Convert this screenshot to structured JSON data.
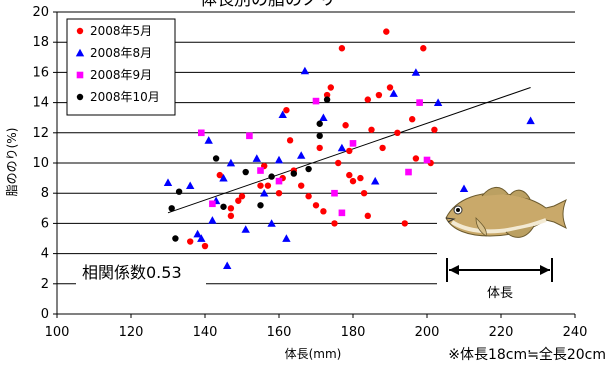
{
  "chart_data": {
    "type": "scatter",
    "title": "体長別の脂のノリ",
    "xlabel": "体長(mm)",
    "ylabel": "脂ののり(%)",
    "xlim": [
      100,
      240
    ],
    "ylim": [
      0,
      20
    ],
    "xticks": [
      "100",
      "120",
      "140",
      "160",
      "180",
      "200",
      "220",
      "240"
    ],
    "yticks": [
      "0",
      "2",
      "4",
      "6",
      "8",
      "10",
      "12",
      "14",
      "16",
      "18",
      "20"
    ],
    "grid": "horizontal",
    "legend_position": "top-left",
    "series": [
      {
        "name": "2008年5月",
        "color": "#ff0000",
        "marker": "circle",
        "points": [
          [
            136,
            4.8
          ],
          [
            140,
            4.5
          ],
          [
            144,
            9.2
          ],
          [
            147,
            7.0
          ],
          [
            147,
            6.5
          ],
          [
            149,
            7.5
          ],
          [
            150,
            7.8
          ],
          [
            155,
            8.5
          ],
          [
            156,
            9.8
          ],
          [
            157,
            8.5
          ],
          [
            160,
            8.0
          ],
          [
            161,
            9.0
          ],
          [
            162,
            13.5
          ],
          [
            163,
            11.5
          ],
          [
            164,
            9.5
          ],
          [
            166,
            8.5
          ],
          [
            168,
            7.8
          ],
          [
            170,
            7.2
          ],
          [
            171,
            11.0
          ],
          [
            172,
            6.8
          ],
          [
            173,
            14.5
          ],
          [
            174,
            15.0
          ],
          [
            175,
            6.0
          ],
          [
            176,
            10.0
          ],
          [
            177,
            17.6
          ],
          [
            178,
            12.5
          ],
          [
            179,
            10.8
          ],
          [
            179,
            9.2
          ],
          [
            180,
            8.8
          ],
          [
            182,
            9.0
          ],
          [
            183,
            8.0
          ],
          [
            184,
            6.5
          ],
          [
            184,
            14.2
          ],
          [
            185,
            12.2
          ],
          [
            187,
            14.5
          ],
          [
            188,
            11.0
          ],
          [
            189,
            18.7
          ],
          [
            190,
            15.0
          ],
          [
            192,
            12.0
          ],
          [
            194,
            6.0
          ],
          [
            196,
            12.9
          ],
          [
            197,
            10.3
          ],
          [
            198,
            14.0
          ],
          [
            199,
            17.6
          ],
          [
            201,
            10.0
          ],
          [
            202,
            12.2
          ]
        ]
      },
      {
        "name": "2008年8月",
        "color": "#0000ff",
        "marker": "triangle",
        "points": [
          [
            130,
            8.7
          ],
          [
            136,
            8.5
          ],
          [
            138,
            5.3
          ],
          [
            139,
            5.0
          ],
          [
            141,
            11.5
          ],
          [
            142,
            6.2
          ],
          [
            143,
            7.5
          ],
          [
            145,
            9.0
          ],
          [
            146,
            3.2
          ],
          [
            147,
            10.0
          ],
          [
            151,
            5.6
          ],
          [
            154,
            10.3
          ],
          [
            156,
            8.0
          ],
          [
            158,
            6.0
          ],
          [
            160,
            10.2
          ],
          [
            161,
            13.2
          ],
          [
            162,
            5.0
          ],
          [
            166,
            10.5
          ],
          [
            167,
            16.1
          ],
          [
            172,
            13.0
          ],
          [
            177,
            11.0
          ],
          [
            186,
            8.8
          ],
          [
            191,
            14.6
          ],
          [
            197,
            16.0
          ],
          [
            203,
            14.0
          ],
          [
            210,
            8.3
          ],
          [
            228,
            12.8
          ]
        ]
      },
      {
        "name": "2008年9月",
        "color": "#ff00ff",
        "marker": "square",
        "points": [
          [
            139,
            12.0
          ],
          [
            142,
            7.3
          ],
          [
            152,
            11.8
          ],
          [
            155,
            9.5
          ],
          [
            160,
            8.8
          ],
          [
            170,
            14.1
          ],
          [
            175,
            8.0
          ],
          [
            177,
            6.7
          ],
          [
            180,
            11.3
          ],
          [
            195,
            9.4
          ],
          [
            198,
            14.0
          ],
          [
            200,
            10.2
          ]
        ]
      },
      {
        "name": "2008年10月",
        "color": "#000000",
        "marker": "circle",
        "points": [
          [
            131,
            7.0
          ],
          [
            132,
            5.0
          ],
          [
            133,
            8.1
          ],
          [
            143,
            10.3
          ],
          [
            145,
            7.1
          ],
          [
            151,
            9.4
          ],
          [
            155,
            7.2
          ],
          [
            158,
            9.1
          ],
          [
            164,
            9.3
          ],
          [
            168,
            9.6
          ],
          [
            171,
            12.6
          ],
          [
            171,
            11.8
          ],
          [
            173,
            14.2
          ]
        ]
      }
    ],
    "trendline": {
      "x": [
        130,
        228
      ],
      "y": [
        6.7,
        15.0
      ]
    },
    "annotations": {
      "correlation": "相関係数0.53",
      "note": "※体長18cm≒全長20cm",
      "fish_label": "体長"
    }
  }
}
